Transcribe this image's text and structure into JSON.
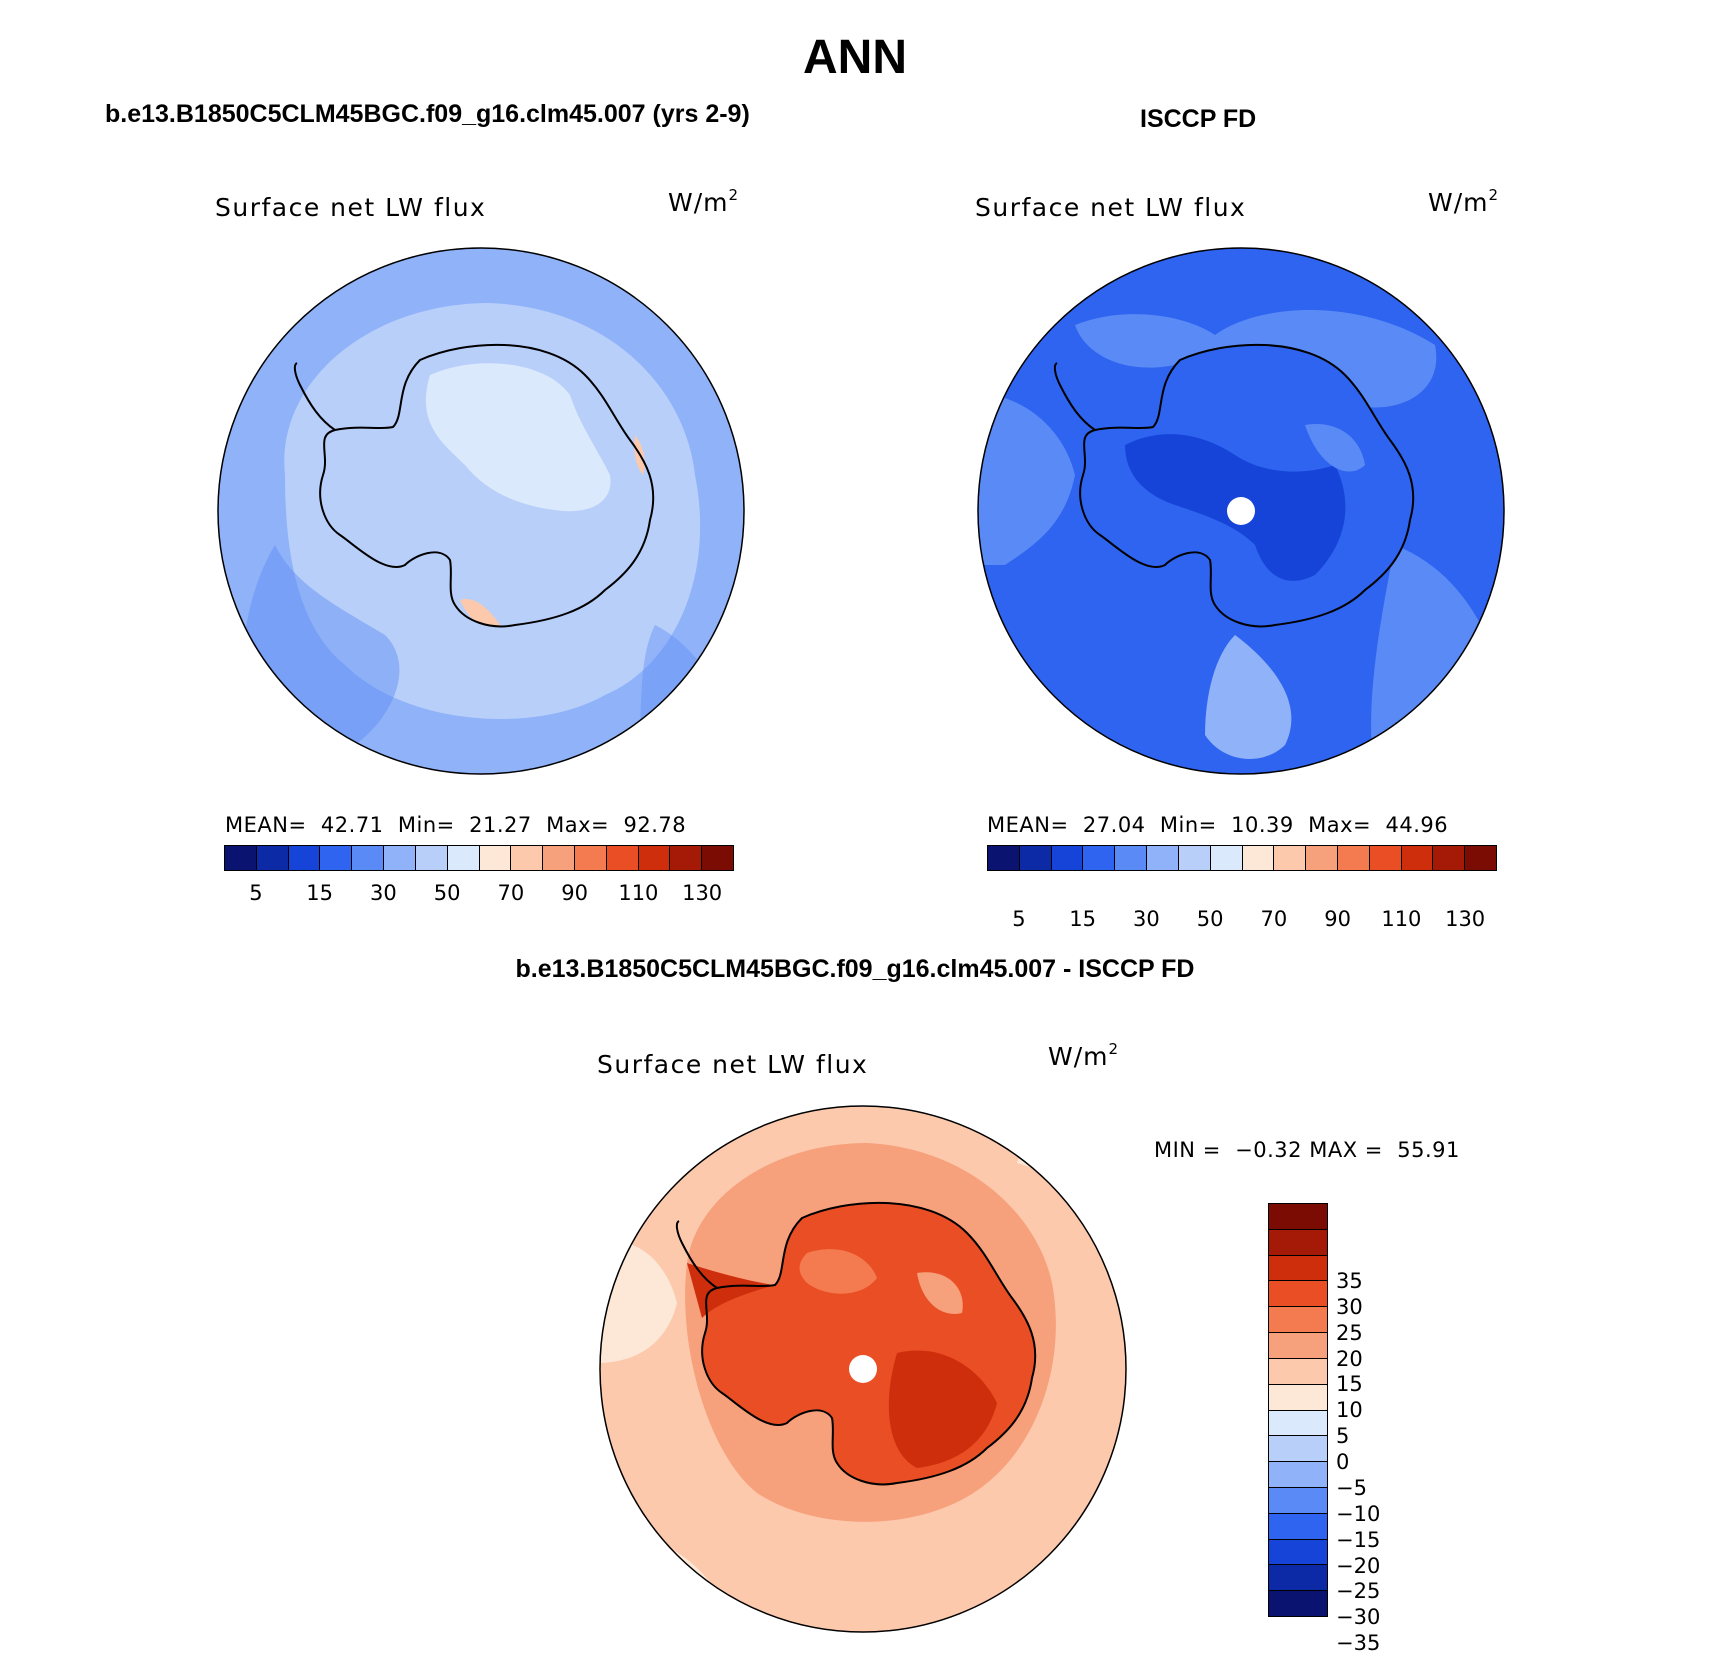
{
  "main_title": "ANN",
  "panels": {
    "model": {
      "header": "b.e13.B1850C5CLM45BGC.f09_g16.clm45.007 (yrs 2-9)",
      "variable": "Surface net LW flux",
      "unit_base": "W/m",
      "unit_exp": "2",
      "stats": {
        "mean_label": "MEAN=",
        "mean": "42.71",
        "min_label": "Min=",
        "min": "21.27",
        "max_label": "Max=",
        "max": "92.78"
      }
    },
    "obs": {
      "header": "ISCCP FD",
      "variable": "Surface net LW flux",
      "unit_base": "W/m",
      "unit_exp": "2",
      "stats": {
        "mean_label": "MEAN=",
        "mean": "27.04",
        "min_label": "Min=",
        "min": "10.39",
        "max_label": "Max=",
        "max": "44.96"
      }
    },
    "diff": {
      "header": "b.e13.B1850C5CLM45BGC.f09_g16.clm45.007 - ISCCP FD",
      "variable": "Surface net LW flux",
      "unit_base": "W/m",
      "unit_exp": "2",
      "minmax": {
        "min_label": "MIN =",
        "min": "−0.32",
        "max_label": "MAX =",
        "max": "55.91"
      }
    }
  },
  "colorbars": {
    "abs": {
      "colors": [
        "#0a1470",
        "#0c2aa6",
        "#1644d8",
        "#2e64f0",
        "#5a8af5",
        "#8fb2f8",
        "#b8cffa",
        "#dbe9fc",
        "#fde8d8",
        "#fcc9ad",
        "#f7a07c",
        "#f47a4f",
        "#ea4e24",
        "#cf2e0d",
        "#a51a06",
        "#7a0c04"
      ],
      "labels": [
        "5",
        "15",
        "30",
        "50",
        "70",
        "90",
        "110",
        "130"
      ]
    },
    "diff": {
      "colors_top_to_bottom": [
        "#7a0c04",
        "#a51a06",
        "#cf2e0d",
        "#ea4e24",
        "#f47a4f",
        "#f7a07c",
        "#fcc9ad",
        "#fde8d8",
        "#dbe9fc",
        "#b8cffa",
        "#8fb2f8",
        "#5a8af5",
        "#2e64f0",
        "#1644d8",
        "#0c2aa6",
        "#0a1470"
      ],
      "labels_top_to_bottom": [
        "35",
        "30",
        "25",
        "20",
        "15",
        "10",
        "5",
        "0",
        "−5",
        "−10",
        "−15",
        "−20",
        "−25",
        "−30",
        "−35"
      ]
    }
  },
  "map_colors": {
    "model_ocean": "#8fb2f8",
    "model_ocean_light": "#b8cffa",
    "model_land": "#b8cffa",
    "model_land_light": "#dbe9fc",
    "model_warm": "#fcc9ad",
    "obs_ocean": "#2e64f0",
    "obs_ocean_light": "#5a8af5",
    "obs_land": "#2e64f0",
    "obs_land_dark": "#1644d8",
    "diff_ocean": "#fcc9ad",
    "diff_ocean_mid": "#f7a07c",
    "diff_ocean_light": "#fde8d8",
    "diff_land": "#ea4e24",
    "diff_land_dark": "#cf2e0d",
    "diff_land_light": "#f47a4f"
  }
}
